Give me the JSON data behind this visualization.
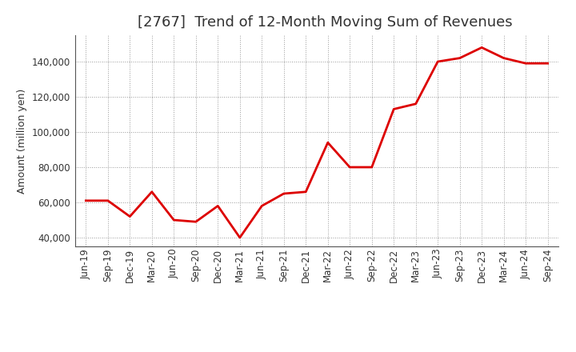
{
  "title": "[2767]  Trend of 12-Month Moving Sum of Revenues",
  "ylabel": "Amount (million yen)",
  "line_color": "#DD0000",
  "background_color": "#FFFFFF",
  "plot_bg_color": "#FFFFFF",
  "grid_color": "#999999",
  "title_color": "#333333",
  "x_labels": [
    "Jun-19",
    "Sep-19",
    "Dec-19",
    "Mar-20",
    "Jun-20",
    "Sep-20",
    "Dec-20",
    "Mar-21",
    "Jun-21",
    "Sep-21",
    "Dec-21",
    "Mar-22",
    "Jun-22",
    "Sep-22",
    "Dec-22",
    "Mar-23",
    "Jun-23",
    "Sep-23",
    "Dec-23",
    "Mar-24",
    "Jun-24",
    "Sep-24"
  ],
  "y_values": [
    61000,
    61000,
    52000,
    66000,
    50000,
    49000,
    58000,
    40000,
    58000,
    65000,
    66000,
    94000,
    80000,
    80000,
    113000,
    116000,
    140000,
    142000,
    148000,
    142000,
    139000,
    139000
  ],
  "ylim": [
    35000,
    155000
  ],
  "yticks": [
    40000,
    60000,
    80000,
    100000,
    120000,
    140000
  ],
  "ytick_labels": [
    "40,000",
    "60,000",
    "80,000",
    "100,000",
    "120,000",
    "140,000"
  ],
  "title_fontsize": 13,
  "label_fontsize": 9,
  "tick_fontsize": 8.5
}
